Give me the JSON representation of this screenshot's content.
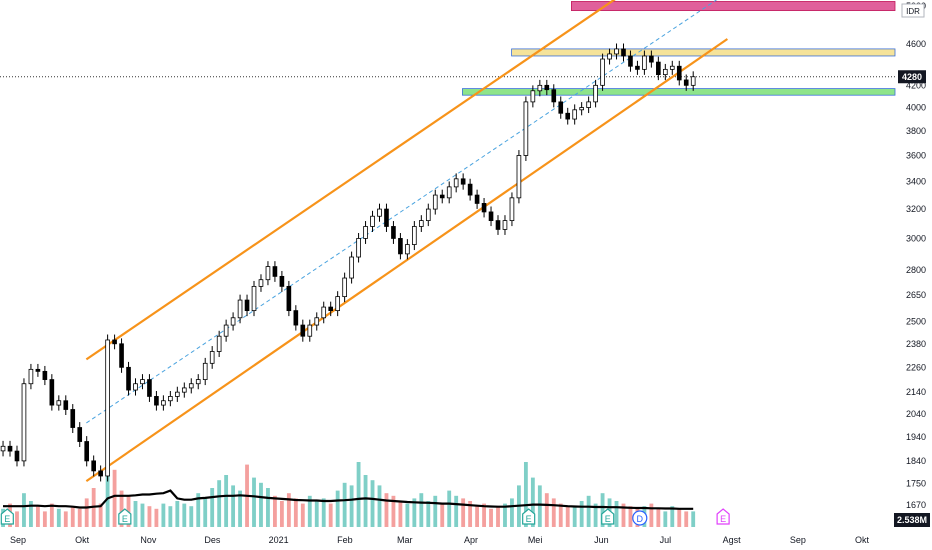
{
  "chart_data": {
    "type": "line",
    "title": "",
    "currency_label": "IDR",
    "last_price_label": "4280",
    "volume_ma_label": "2.538M",
    "y_axis": {
      "scale": "log",
      "ticks": [
        "5000",
        "4600",
        "4200",
        "4000",
        "3800",
        "3600",
        "3400",
        "3200",
        "3000",
        "2800",
        "2650",
        "2500",
        "2380",
        "2260",
        "2140",
        "2040",
        "1940",
        "1840",
        "1750",
        "1670"
      ]
    },
    "x_axis": {
      "ticks": [
        "Sep",
        "Okt",
        "Nov",
        "Des",
        "2021",
        "Feb",
        "Mar",
        "Apr",
        "Mei",
        "Jun",
        "Jul",
        "Agst",
        "Sep",
        "Okt"
      ]
    },
    "grid": false,
    "price_series": {
      "name": "",
      "start": "2020-08-25",
      "end": "2021-07-14",
      "values": [
        1900,
        1880,
        1840,
        2180,
        2250,
        2240,
        2200,
        2080,
        2100,
        2060,
        1980,
        1920,
        1840,
        1800,
        1780,
        2400,
        2380,
        2260,
        2150,
        2180,
        2200,
        2120,
        2080,
        2100,
        2120,
        2140,
        2160,
        2180,
        2200,
        2280,
        2340,
        2420,
        2480,
        2520,
        2620,
        2560,
        2700,
        2740,
        2820,
        2760,
        2700,
        2560,
        2480,
        2420,
        2480,
        2520,
        2580,
        2560,
        2640,
        2750,
        2880,
        3000,
        3080,
        3150,
        3200,
        3080,
        3000,
        2900,
        2960,
        3080,
        3120,
        3200,
        3300,
        3280,
        3360,
        3420,
        3380,
        3300,
        3240,
        3180,
        3120,
        3060,
        3120,
        3280,
        3600,
        4050,
        4150,
        4200,
        4160,
        4050,
        3950,
        3900,
        3980,
        4000,
        4050,
        4200,
        4450,
        4500,
        4550,
        4480,
        4380,
        4350,
        4480,
        4420,
        4300,
        4350,
        4380,
        4250,
        4200,
        4280
      ]
    },
    "volume": {
      "values": [
        0.7,
        0.9,
        0.6,
        1.3,
        1.0,
        0.8,
        0.6,
        0.9,
        0.7,
        0.6,
        0.8,
        0.7,
        1.1,
        1.5,
        0.9,
        2.6,
        2.2,
        1.4,
        1.2,
        1.0,
        0.9,
        0.8,
        0.7,
        0.9,
        0.8,
        1.0,
        0.9,
        0.8,
        1.3,
        1.1,
        1.5,
        1.8,
        2.0,
        1.6,
        1.4,
        2.4,
        1.9,
        1.7,
        1.5,
        1.2,
        1.0,
        1.3,
        1.1,
        0.9,
        1.2,
        1.0,
        1.1,
        0.9,
        1.4,
        1.7,
        1.6,
        2.5,
        2.0,
        1.8,
        1.6,
        1.3,
        1.2,
        1.0,
        0.9,
        1.1,
        1.3,
        1.0,
        1.2,
        0.9,
        1.4,
        1.2,
        1.1,
        1.0,
        0.8,
        0.9,
        0.7,
        0.8,
        0.9,
        1.1,
        1.6,
        2.5,
        1.9,
        1.6,
        1.3,
        1.1,
        0.9,
        0.8,
        0.8,
        1.0,
        1.2,
        0.9,
        1.3,
        1.1,
        1.0,
        0.9,
        0.8,
        0.7,
        0.8,
        0.9,
        0.7,
        0.6,
        0.8,
        0.7,
        0.6,
        0.6
      ],
      "ma": [
        0.8,
        0.8,
        0.8,
        0.8,
        0.82,
        0.82,
        0.8,
        0.82,
        0.8,
        0.8,
        0.78,
        0.75,
        0.75,
        0.78,
        0.8,
        1.1,
        1.2,
        1.2,
        1.2,
        1.22,
        1.25,
        1.25,
        1.28,
        1.3,
        1.4,
        1.1,
        1.05,
        1.05,
        1.1,
        1.12,
        1.15,
        1.18,
        1.2,
        1.2,
        1.22,
        1.2,
        1.18,
        1.15,
        1.12,
        1.1,
        1.08,
        1.06,
        1.04,
        1.03,
        1.02,
        1.02,
        1.0,
        1.0,
        1.02,
        1.03,
        1.05,
        1.08,
        1.1,
        1.08,
        1.05,
        1.02,
        1.0,
        0.98,
        0.96,
        0.95,
        0.94,
        0.93,
        0.92,
        0.9,
        0.9,
        0.88,
        0.86,
        0.84,
        0.82,
        0.8,
        0.79,
        0.78,
        0.78,
        0.8,
        0.82,
        0.84,
        0.86,
        0.86,
        0.85,
        0.84,
        0.82,
        0.8,
        0.79,
        0.78,
        0.78,
        0.77,
        0.77,
        0.76,
        0.76,
        0.75,
        0.74,
        0.73,
        0.73,
        0.72,
        0.72,
        0.71,
        0.71,
        0.7,
        0.7,
        0.7
      ]
    },
    "channel": {
      "upper": {
        "from": [
          "2020-10-03",
          2300
        ],
        "to": [
          "2021-06-15",
          5200
        ]
      },
      "lower": {
        "from": [
          "2020-10-03",
          1760
        ],
        "to": [
          "2021-07-30",
          4650
        ]
      },
      "middle": {
        "from": [
          "2020-10-03",
          2000
        ],
        "to": [
          "2021-07-30",
          5150
        ]
      }
    },
    "zones": [
      {
        "low": 4950,
        "high": 5050,
        "from": "2021-05-18",
        "color": "#e0609b"
      },
      {
        "low": 4480,
        "high": 4550,
        "from": "2021-04-20",
        "color": "#f5e39a"
      },
      {
        "low": 4110,
        "high": 4170,
        "from": "2021-03-28",
        "color": "#8ee48a"
      }
    ],
    "reference_price": 4280,
    "event_markers": [
      {
        "date": "2020-08-27",
        "label": "E"
      },
      {
        "date": "2020-10-21",
        "label": "E"
      },
      {
        "date": "2021-04-28",
        "label": "E"
      },
      {
        "date": "2021-06-04",
        "label": "E"
      },
      {
        "date": "2021-06-19",
        "label": "D"
      },
      {
        "date": "2021-07-28",
        "label": "E"
      }
    ],
    "colors": {
      "up": "#26a69a",
      "down": "#ef5350",
      "price": "#000000",
      "channel": "#f7931a",
      "midline": "#4aa3df",
      "ma": "#000000",
      "vol_up": "#7fcfc7",
      "vol_down": "#f4a09e"
    }
  }
}
